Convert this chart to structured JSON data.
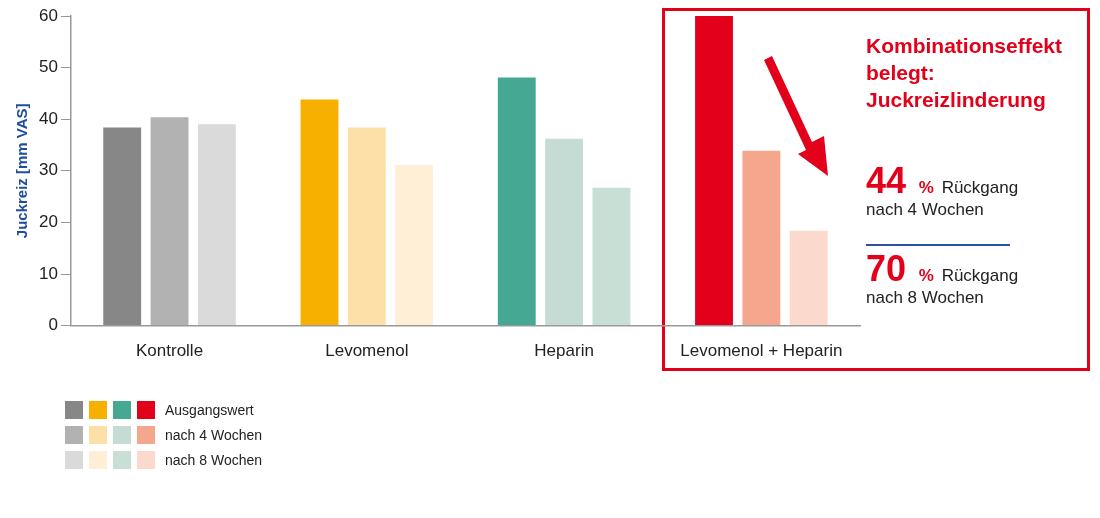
{
  "chart_data": {
    "type": "bar",
    "ylabel": "Juckreiz [mm VAS]",
    "categories": [
      "Kontrolle",
      "Levomenol",
      "Heparin",
      "Levomenol + Heparin"
    ],
    "series": [
      {
        "name": "Ausgangswert",
        "colors": [
          "#878787",
          "#f8b000",
          "#44a892",
          "#e3001b"
        ],
        "values": [
          38.4,
          43.8,
          48.1,
          60
        ]
      },
      {
        "name": "nach 4 Wochen",
        "colors": [
          "#b2b2b2",
          "#fde0a8",
          "#c4dcd3",
          "#f4a78d"
        ],
        "values": [
          40.4,
          38.4,
          36.2,
          33.9
        ]
      },
      {
        "name": "nach 8 Wochen",
        "colors": [
          "#dadada",
          "#feefd6",
          "#c8dfd6",
          "#fbd9cc"
        ],
        "values": [
          39,
          31.1,
          26.7,
          18.4
        ]
      }
    ],
    "ylim": [
      0,
      60
    ],
    "yticks": [
      0,
      10,
      20,
      30,
      40,
      50,
      60
    ],
    "legend": "bottom left",
    "annotations": [
      "Kombinationseffekt belegt: Juckreizlinderung",
      "44 % Rückgang nach 4 Wochen",
      "70 % Rückgang nach 8 Wochen"
    ]
  }
}
